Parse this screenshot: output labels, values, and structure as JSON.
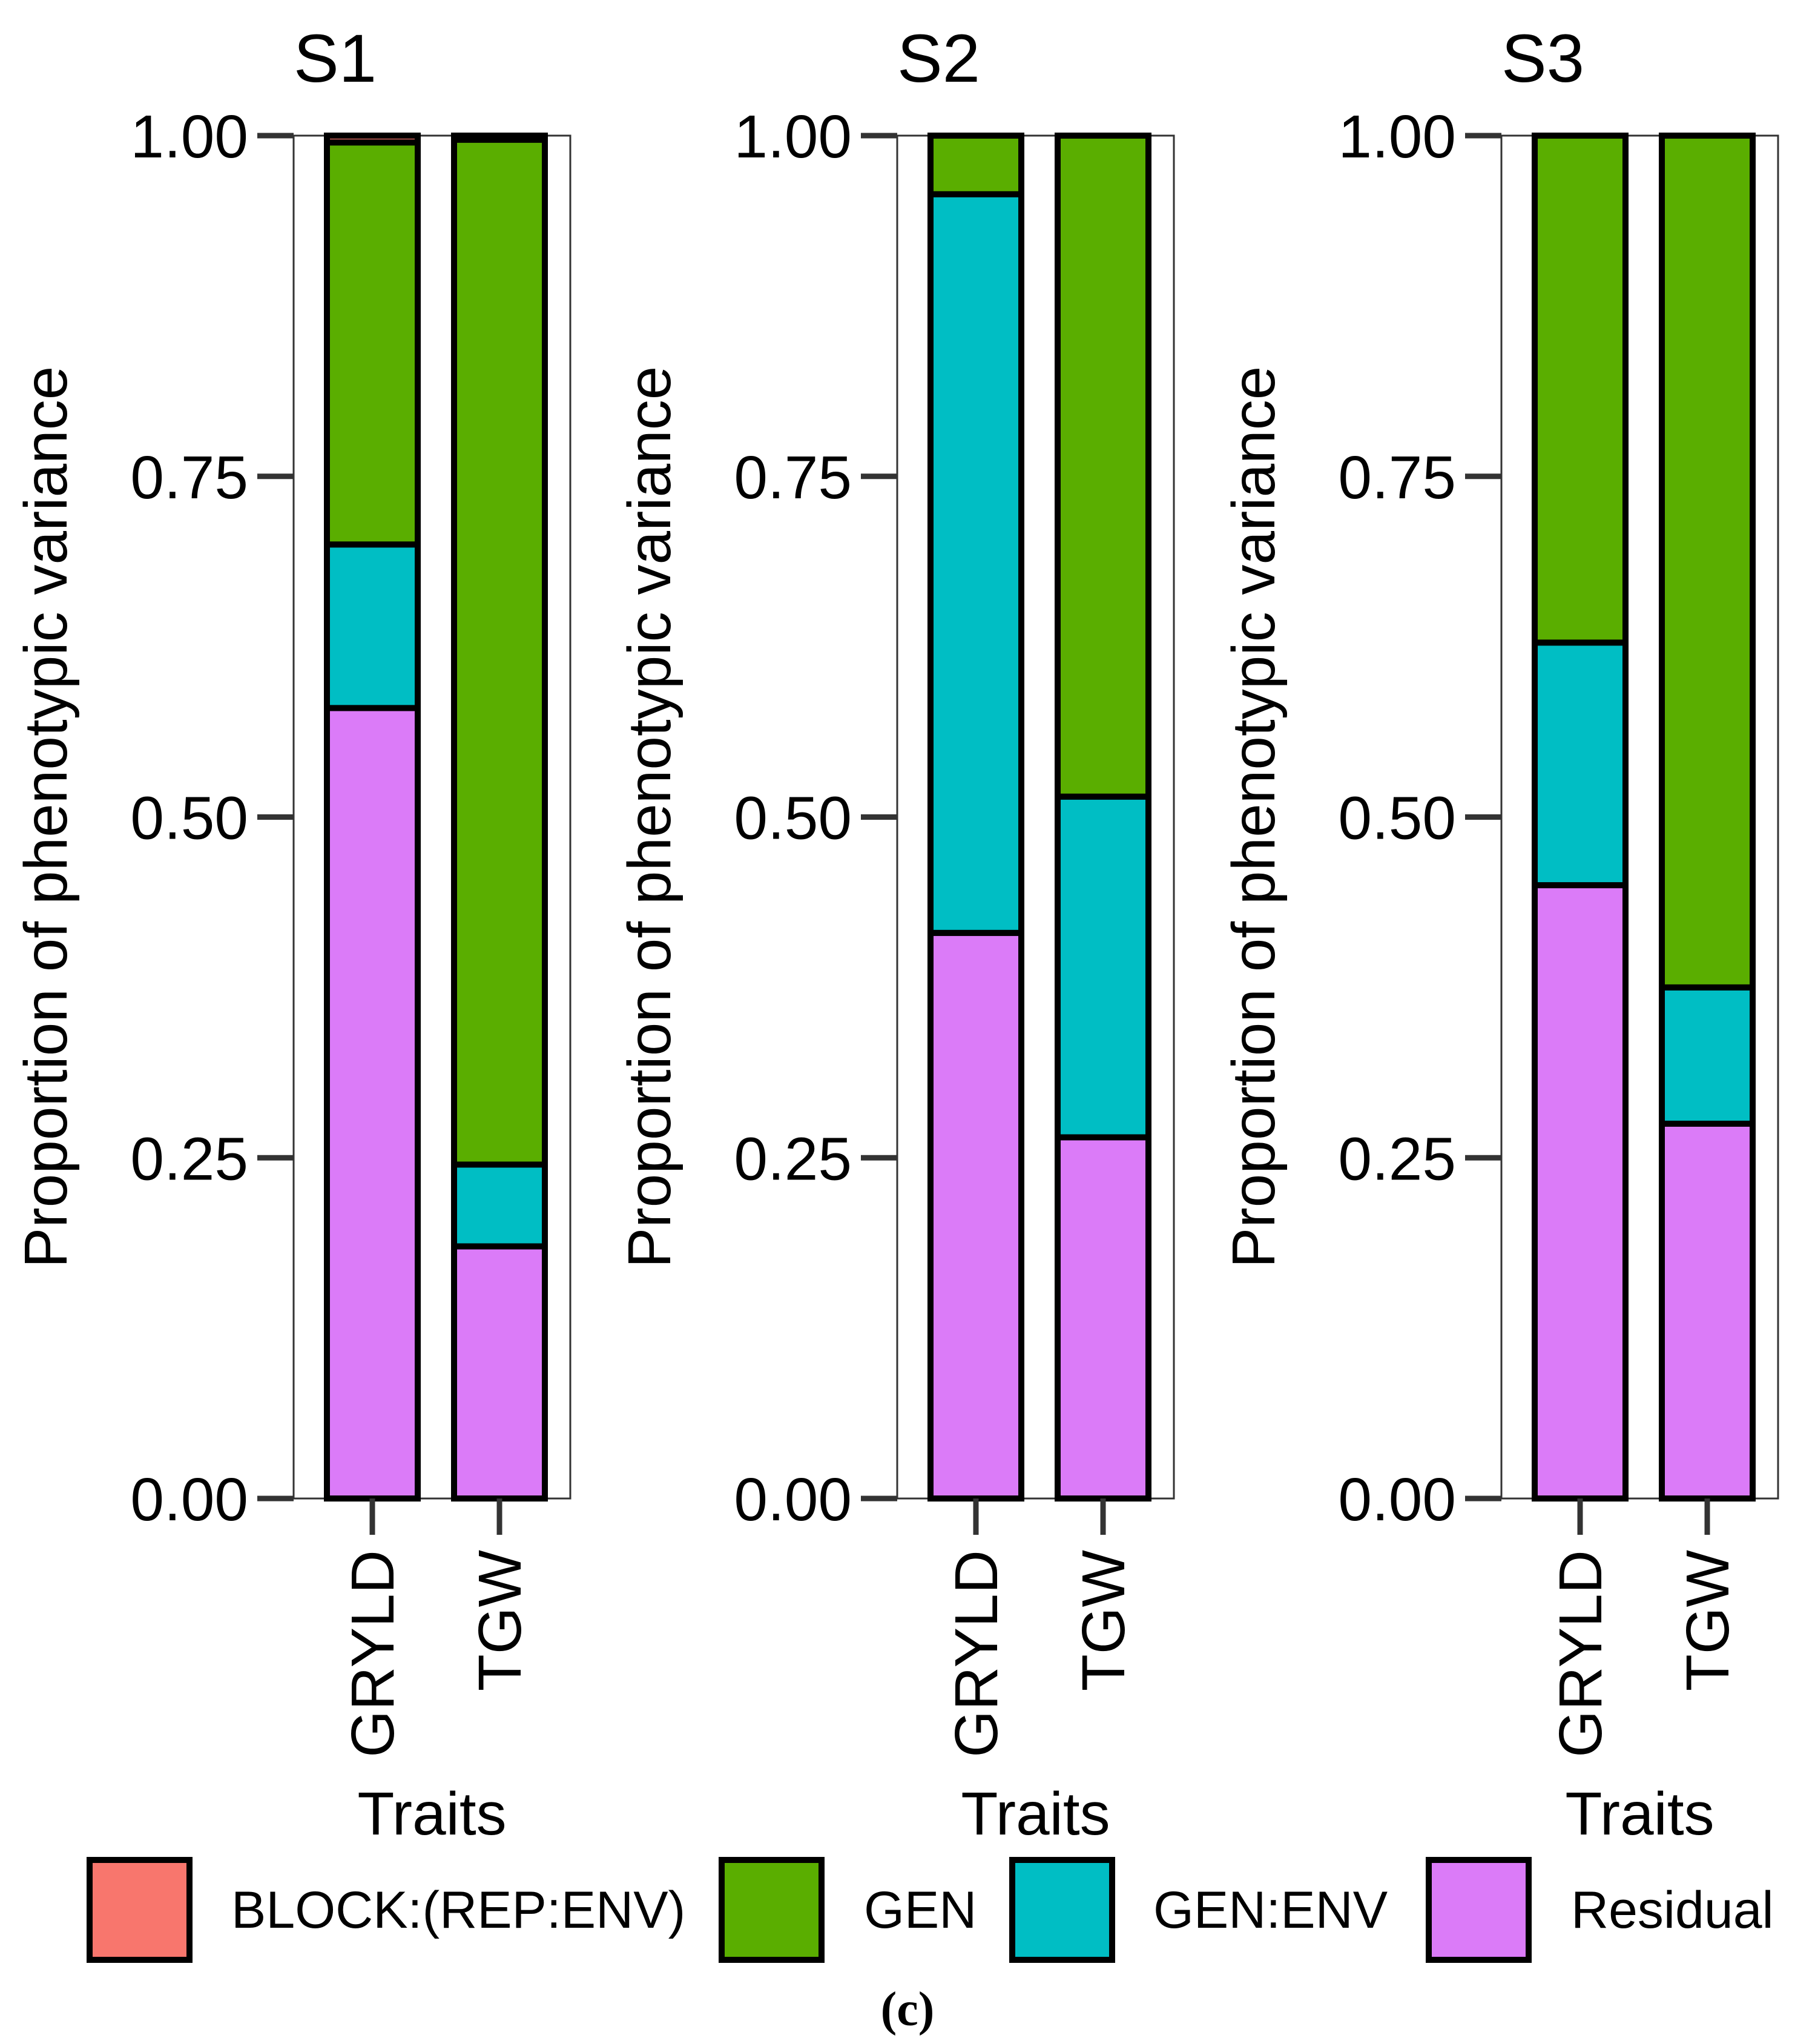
{
  "chart_data": [
    {
      "type": "bar",
      "stacked": true,
      "title": "S1",
      "xlabel": "Traits",
      "ylabel": "Proportion of phenotypic variance",
      "ylim": [
        0,
        1
      ],
      "yticks": [
        "0.00",
        "0.25",
        "0.50",
        "0.75",
        "1.00"
      ],
      "categories": [
        "GRYLD",
        "TGW"
      ],
      "series": [
        {
          "name": "Residual",
          "values": [
            0.58,
            0.185
          ]
        },
        {
          "name": "GEN:ENV",
          "values": [
            0.12,
            0.06
          ]
        },
        {
          "name": "GEN",
          "values": [
            0.295,
            0.752
          ]
        },
        {
          "name": "BLOCK:(REP:ENV)",
          "values": [
            0.005,
            0.003
          ]
        }
      ]
    },
    {
      "type": "bar",
      "stacked": true,
      "title": "S2",
      "xlabel": "Traits",
      "ylabel": "Proportion of phenotypic variance",
      "ylim": [
        0,
        1
      ],
      "yticks": [
        "0.00",
        "0.25",
        "0.50",
        "0.75",
        "1.00"
      ],
      "categories": [
        "GRYLD",
        "TGW"
      ],
      "series": [
        {
          "name": "Residual",
          "values": [
            0.415,
            0.265
          ]
        },
        {
          "name": "GEN:ENV",
          "values": [
            0.542,
            0.25
          ]
        },
        {
          "name": "GEN",
          "values": [
            0.043,
            0.485
          ]
        },
        {
          "name": "BLOCK:(REP:ENV)",
          "values": [
            0.0,
            0.0
          ]
        }
      ]
    },
    {
      "type": "bar",
      "stacked": true,
      "title": "S3",
      "xlabel": "Traits",
      "ylabel": "Proportion of phenotypic variance",
      "ylim": [
        0,
        1
      ],
      "yticks": [
        "0.00",
        "0.25",
        "0.50",
        "0.75",
        "1.00"
      ],
      "categories": [
        "GRYLD",
        "TGW"
      ],
      "series": [
        {
          "name": "Residual",
          "values": [
            0.45,
            0.275
          ]
        },
        {
          "name": "GEN:ENV",
          "values": [
            0.178,
            0.1
          ]
        },
        {
          "name": "GEN",
          "values": [
            0.372,
            0.625
          ]
        },
        {
          "name": "BLOCK:(REP:ENV)",
          "values": [
            0.0,
            0.0
          ]
        }
      ]
    }
  ],
  "legend": {
    "position": "bottom",
    "items": [
      {
        "label": "BLOCK:(REP:ENV)",
        "color": "#f8766d"
      },
      {
        "label": "GEN",
        "color": "#5aae00"
      },
      {
        "label": "GEN:ENV",
        "color": "#00bec4"
      },
      {
        "label": "Residual",
        "color": "#db7bf8"
      }
    ]
  },
  "caption": "(c)"
}
